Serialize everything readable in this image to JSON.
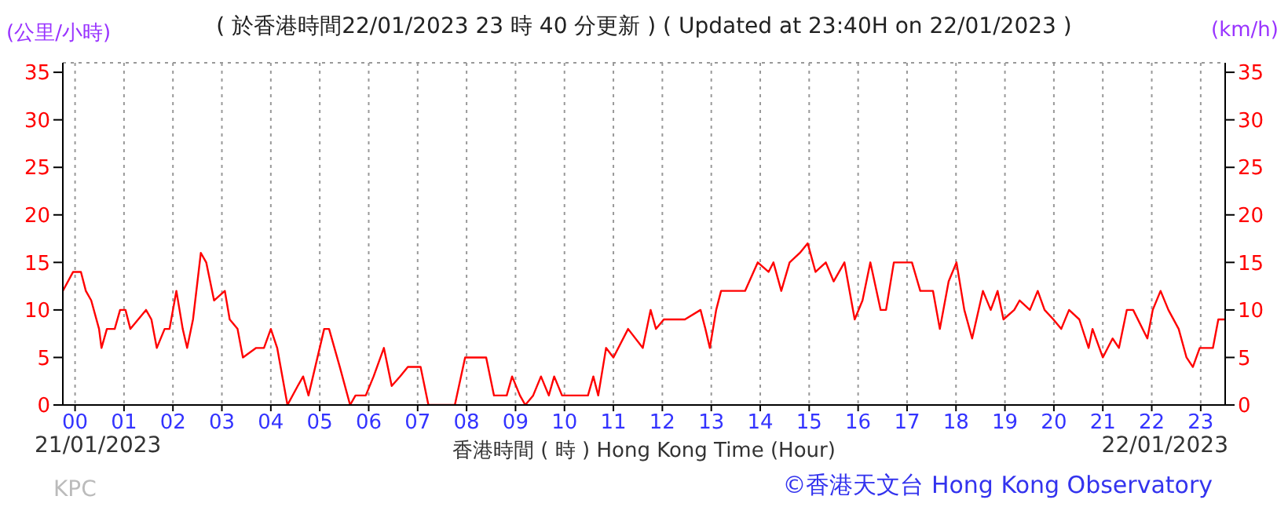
{
  "chart_data": {
    "type": "line",
    "title": "( 於香港時間22/01/2023 23 時 40 分更新 ) ( Updated at 23:40H on 22/01/2023 )",
    "xlabel": "香港時間 ( 時 )  Hong Kong Time (Hour)",
    "ylabel": "(公里/小時)",
    "y2label": "(km/h)",
    "annotations": [
      "21/01/2023",
      "22/01/2023",
      "KPC",
      "©香港天文台 Hong Kong Observatory"
    ],
    "x": [
      -0.25,
      -0.04,
      0.12,
      0.22,
      0.33,
      0.49,
      0.54,
      0.65,
      0.81,
      0.92,
      1.03,
      1.13,
      1.29,
      1.45,
      1.56,
      1.67,
      1.83,
      1.93,
      2.07,
      2.2,
      2.29,
      2.41,
      2.57,
      2.68,
      2.84,
      3.06,
      3.16,
      3.32,
      3.43,
      3.7,
      3.86,
      4.0,
      4.13,
      4.34,
      4.55,
      4.66,
      4.77,
      5.09,
      5.19,
      5.41,
      5.62,
      5.73,
      5.94,
      6.1,
      6.31,
      6.47,
      6.64,
      6.8,
      7.06,
      7.22,
      7.76,
      7.97,
      8.4,
      8.56,
      8.82,
      8.93,
      9.09,
      9.2,
      9.36,
      9.52,
      9.68,
      9.79,
      9.95,
      10.48,
      10.59,
      10.69,
      10.85,
      11.0,
      11.3,
      11.6,
      11.76,
      11.87,
      12.03,
      12.46,
      12.78,
      12.88,
      12.97,
      13.1,
      13.2,
      13.69,
      13.95,
      14.17,
      14.27,
      14.43,
      14.6,
      14.81,
      14.97,
      15.13,
      15.34,
      15.5,
      15.72,
      15.93,
      16.09,
      16.25,
      16.46,
      16.57,
      16.73,
      17.1,
      17.27,
      17.53,
      17.67,
      17.85,
      18.01,
      18.17,
      18.33,
      18.55,
      18.71,
      18.85,
      18.97,
      19.19,
      19.3,
      19.51,
      19.67,
      19.81,
      19.99,
      20.15,
      20.31,
      20.52,
      20.71,
      20.79,
      21.0,
      21.2,
      21.33,
      21.49,
      21.62,
      21.91,
      22.02,
      22.18,
      22.34,
      22.55,
      22.71,
      22.84,
      22.98,
      23.25,
      23.36,
      23.5
    ],
    "series": [
      {
        "color": "#ff0000",
        "values": [
          12,
          14,
          14,
          12,
          11,
          8,
          6,
          8,
          8,
          10,
          10,
          8,
          9,
          10,
          9,
          6,
          8,
          8,
          12,
          8,
          6,
          9,
          16,
          15,
          11,
          12,
          9,
          8,
          5,
          6,
          6,
          8,
          6,
          0,
          2,
          3,
          1,
          8,
          8,
          4,
          0,
          1,
          1,
          3,
          6,
          2,
          3,
          4,
          4,
          0,
          0,
          5,
          5,
          1,
          1,
          3,
          1,
          0,
          1,
          3,
          1,
          3,
          1,
          1,
          3,
          1,
          6,
          5,
          8,
          6,
          10,
          8,
          9,
          9,
          10,
          8,
          6,
          10,
          12,
          12,
          15,
          14,
          15,
          12,
          15,
          16,
          17,
          14,
          15,
          13,
          15,
          9,
          11,
          15,
          10,
          10,
          15,
          15,
          12,
          12,
          8,
          13,
          15,
          10,
          7,
          12,
          10,
          12,
          9,
          10,
          11,
          10,
          12,
          10,
          9,
          8,
          10,
          9,
          6,
          8,
          5,
          7,
          6,
          10,
          10,
          7,
          10,
          12,
          10,
          8,
          5,
          4,
          6,
          6,
          9,
          9
        ]
      }
    ],
    "xlim": [
      -0.25,
      23.5
    ],
    "xticks": [
      {
        "value": 0,
        "label": "00"
      },
      {
        "value": 1,
        "label": "01"
      },
      {
        "value": 2,
        "label": "02"
      },
      {
        "value": 3,
        "label": "03"
      },
      {
        "value": 4,
        "label": "04"
      },
      {
        "value": 5,
        "label": "05"
      },
      {
        "value": 6,
        "label": "06"
      },
      {
        "value": 7,
        "label": "07"
      },
      {
        "value": 8,
        "label": "08"
      },
      {
        "value": 9,
        "label": "09"
      },
      {
        "value": 10,
        "label": "10"
      },
      {
        "value": 11,
        "label": "11"
      },
      {
        "value": 12,
        "label": "12"
      },
      {
        "value": 13,
        "label": "13"
      },
      {
        "value": 14,
        "label": "14"
      },
      {
        "value": 15,
        "label": "15"
      },
      {
        "value": 16,
        "label": "16"
      },
      {
        "value": 17,
        "label": "17"
      },
      {
        "value": 18,
        "label": "18"
      },
      {
        "value": 19,
        "label": "19"
      },
      {
        "value": 20,
        "label": "20"
      },
      {
        "value": 21,
        "label": "21"
      },
      {
        "value": 22,
        "label": "22"
      },
      {
        "value": 23,
        "label": "23"
      }
    ],
    "ylim": [
      0,
      36
    ],
    "yticks": [
      0,
      5,
      10,
      15,
      20,
      25,
      30,
      35
    ],
    "y2lim": [
      0,
      36
    ],
    "y2ticks": [
      0,
      5,
      10,
      15,
      20,
      25,
      30,
      35
    ],
    "grid": true,
    "legend": false,
    "marker": "none",
    "line_style": "solid"
  }
}
